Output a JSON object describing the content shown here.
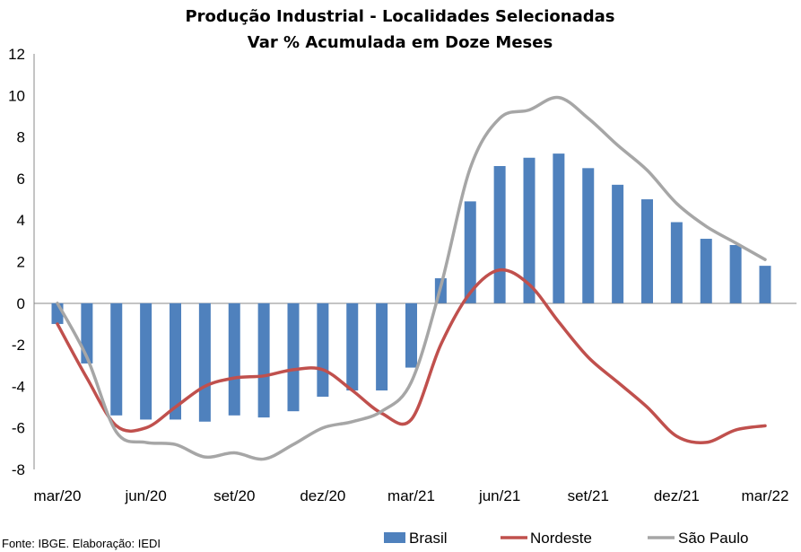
{
  "chart_data": {
    "type": "bar",
    "title": "Produção Industrial - Localidades Selecionadas",
    "subtitle": "Var % Acumulada em Doze Meses",
    "source": "Fonte: IBGE. Elaboração: IEDI",
    "ylim": [
      -8,
      12
    ],
    "yticks": [
      -8,
      -6,
      -4,
      -2,
      0,
      2,
      4,
      6,
      8,
      10,
      12
    ],
    "grid": false,
    "legend_position": "bottom",
    "x": [
      "mar/20",
      "abr/20",
      "mai/20",
      "jun/20",
      "jul/20",
      "ago/20",
      "set/20",
      "out/20",
      "nov/20",
      "dez/20",
      "jan/21",
      "fev/21",
      "mar/21",
      "abr/21",
      "mai/21",
      "jun/21",
      "jul/21",
      "ago/21",
      "set/21",
      "out/21",
      "nov/21",
      "dez/21",
      "jan/22",
      "fev/22",
      "mar/22"
    ],
    "xtick_labels": [
      {
        "index": 0,
        "label": "mar/20"
      },
      {
        "index": 3,
        "label": "jun/20"
      },
      {
        "index": 6,
        "label": "set/20"
      },
      {
        "index": 9,
        "label": "dez/20"
      },
      {
        "index": 12,
        "label": "mar/21"
      },
      {
        "index": 15,
        "label": "jun/21"
      },
      {
        "index": 18,
        "label": "set/21"
      },
      {
        "index": 21,
        "label": "dez/21"
      },
      {
        "index": 24,
        "label": "mar/22"
      }
    ],
    "series": [
      {
        "name": "Brasil",
        "type": "bar",
        "color": "#4f81bd",
        "values": [
          -1.0,
          -2.9,
          -5.4,
          -5.6,
          -5.6,
          -5.7,
          -5.4,
          -5.5,
          -5.2,
          -4.5,
          -4.2,
          -4.2,
          -3.1,
          1.2,
          4.9,
          6.6,
          7.0,
          7.2,
          6.5,
          5.7,
          5.0,
          3.9,
          3.1,
          2.8,
          1.8
        ]
      },
      {
        "name": "Nordeste",
        "type": "line",
        "color": "#c0504d",
        "values": [
          -1.0,
          -3.6,
          -5.9,
          -6.0,
          -5.0,
          -4.0,
          -3.6,
          -3.5,
          -3.2,
          -3.2,
          -4.2,
          -5.3,
          -5.6,
          -2.0,
          0.5,
          1.6,
          0.9,
          -0.9,
          -2.6,
          -3.8,
          -5.0,
          -6.4,
          -6.7,
          -6.1,
          -5.9
        ]
      },
      {
        "name": "São Paulo",
        "type": "line",
        "color": "#a6a6a6",
        "values": [
          0.0,
          -2.6,
          -6.2,
          -6.7,
          -6.8,
          -7.4,
          -7.2,
          -7.5,
          -6.8,
          -6.0,
          -5.7,
          -5.2,
          -3.8,
          0.8,
          6.5,
          8.9,
          9.3,
          9.9,
          8.9,
          7.6,
          6.4,
          4.8,
          3.7,
          2.9,
          2.1
        ]
      }
    ]
  }
}
